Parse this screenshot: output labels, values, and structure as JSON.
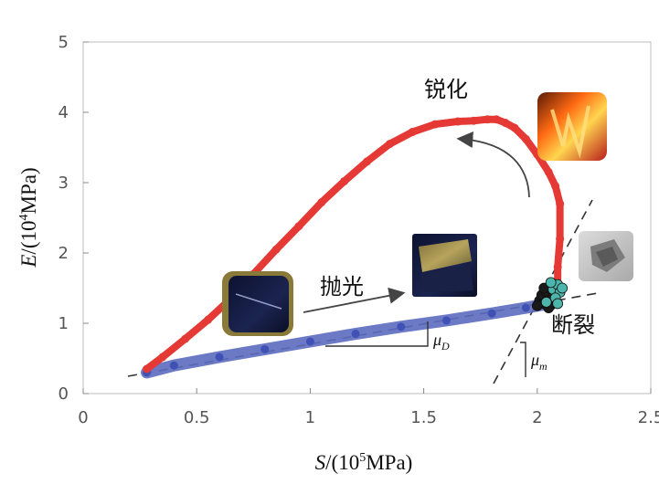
{
  "chart_data": {
    "type": "scatter",
    "title": "",
    "xlabel": {
      "var": "S",
      "unit_prefix": "/(10",
      "exp": "5",
      "unit": "MPa)"
    },
    "ylabel": {
      "var": "E",
      "unit_prefix": "/(10",
      "exp": "4",
      "unit": "MPa)"
    },
    "xlim": [
      0,
      2.5
    ],
    "ylim": [
      0,
      5
    ],
    "xticks": [
      "0",
      "0.5",
      "1",
      "1.5",
      "2",
      "2.5"
    ],
    "yticks": [
      "0",
      "1",
      "2",
      "3",
      "4",
      "5"
    ],
    "grid": false,
    "series": [
      {
        "color": "#e53935",
        "x": [
          0.28,
          0.35,
          0.45,
          0.55,
          0.65,
          0.75,
          0.85,
          0.95,
          1.05,
          1.15,
          1.25,
          1.35,
          1.45,
          1.55,
          1.65,
          1.72,
          1.78,
          1.82,
          1.86,
          1.9,
          1.95,
          2.0,
          2.05,
          2.08,
          2.1,
          2.1,
          2.09,
          2.09
        ],
        "y": [
          0.35,
          0.52,
          0.78,
          1.05,
          1.35,
          1.7,
          2.05,
          2.38,
          2.72,
          3.02,
          3.3,
          3.55,
          3.72,
          3.83,
          3.87,
          3.88,
          3.9,
          3.9,
          3.85,
          3.78,
          3.62,
          3.4,
          3.15,
          2.95,
          2.7,
          2.2,
          1.8,
          1.45
        ]
      },
      {
        "color": "#5c6bc0",
        "x": [
          0.28,
          0.4,
          0.6,
          0.8,
          1.0,
          1.2,
          1.4,
          1.6,
          1.8,
          1.95,
          2.05
        ],
        "y": [
          0.3,
          0.4,
          0.52,
          0.63,
          0.74,
          0.85,
          0.95,
          1.04,
          1.14,
          1.22,
          1.28
        ]
      }
    ],
    "annotations": {
      "sharpen": "锐化",
      "polish": "抛光",
      "fracture": "断裂",
      "mu_d": {
        "sym": "μ",
        "sub": "D"
      },
      "mu_m": {
        "sym": "μ",
        "sub": "m"
      }
    },
    "colors": {
      "axis": "#888888",
      "dashed_line": "#333333",
      "arrow": "#444444",
      "cluster_dark": "#1a1a1a",
      "cluster_teal": "#4db6ac"
    }
  }
}
